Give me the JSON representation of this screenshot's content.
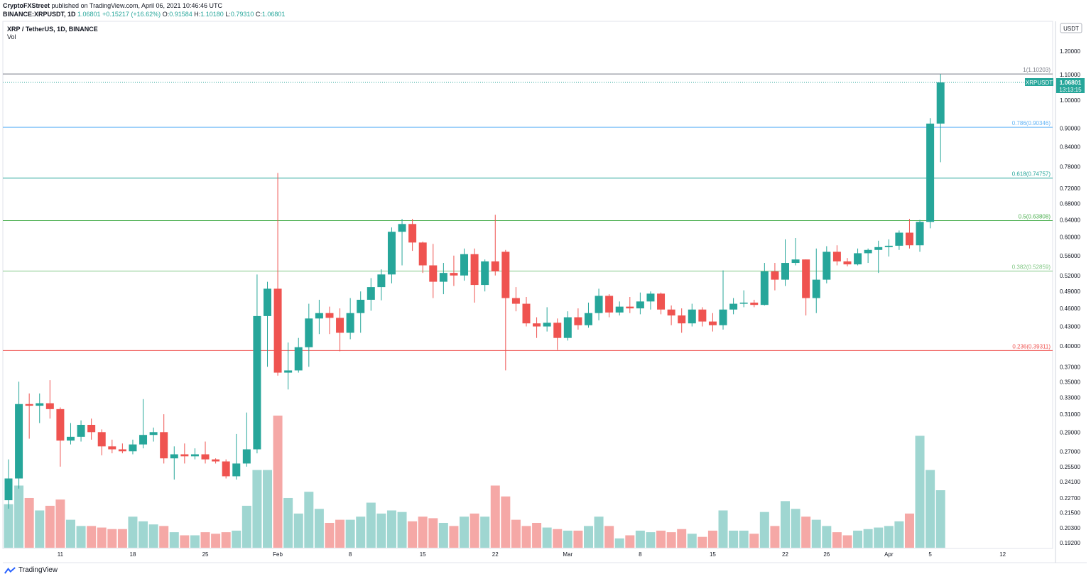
{
  "header": {
    "publisher": "CryptoFXStreet",
    "published_text": "published on TradingView.com, April 06, 2021 10:46:46 UTC",
    "ticker": "BINANCE:XRPUSDT, 1D",
    "last": "1.06801",
    "change": "+0.15217 (+16.62%)",
    "ohlc": {
      "o_label": "O:",
      "o": "0.91584",
      "h_label": "H:",
      "h": "1.10180",
      "l_label": "L:",
      "l": "0.79310",
      "c_label": "C:",
      "c": "1.06801"
    }
  },
  "legend": {
    "symbol": "XRP / TetherUS, 1D, BINANCE",
    "volume": "Vol"
  },
  "footer": {
    "brand": "TradingView"
  },
  "colors": {
    "up": "#26a69a",
    "down": "#ef5350",
    "vol_up": "#9fd6d1",
    "vol_down": "#f5a8a6",
    "fib_top": "#787b86",
    "fib_786": "#64b5f6",
    "fib_618": "#26a69a",
    "fib_05": "#4caf50",
    "fib_382": "#81c784",
    "fib_236": "#ef5350"
  },
  "chart_data": {
    "type": "candlestick",
    "y_scale": "log",
    "currency": "USDT",
    "ylim": [
      0.19,
      1.32
    ],
    "y_ticks": [
      "1.20000",
      "1.10000",
      "1.00000",
      "0.90000",
      "0.84000",
      "0.78000",
      "0.72000",
      "0.68000",
      "0.64000",
      "0.60000",
      "0.56000",
      "0.52000",
      "0.49000",
      "0.46000",
      "0.43000",
      "0.40000",
      "0.37000",
      "0.35000",
      "0.33000",
      "0.31000",
      "0.29000",
      "0.27000",
      "0.25500",
      "0.24100",
      "0.22700",
      "0.21500",
      "0.20300",
      "0.19200"
    ],
    "x_ticks": [
      {
        "label": "11",
        "i": 5
      },
      {
        "label": "18",
        "i": 12
      },
      {
        "label": "25",
        "i": 19
      },
      {
        "label": "Feb",
        "i": 26
      },
      {
        "label": "8",
        "i": 33
      },
      {
        "label": "15",
        "i": 40
      },
      {
        "label": "22",
        "i": 47
      },
      {
        "label": "Mar",
        "i": 54
      },
      {
        "label": "8",
        "i": 61
      },
      {
        "label": "15",
        "i": 68
      },
      {
        "label": "22",
        "i": 75
      },
      {
        "label": "26",
        "i": 79
      },
      {
        "label": "Apr",
        "i": 85
      },
      {
        "label": "5",
        "i": 89
      },
      {
        "label": "12",
        "i": 96
      }
    ],
    "price_label": {
      "symbol": "XRPUSDT",
      "price": "1.06801",
      "countdown": "13:13:15"
    },
    "fib_levels": [
      {
        "label": "1(1.10203)",
        "value": 1.10203,
        "color_key": "fib_top"
      },
      {
        "label": "0.786(0.90346)",
        "value": 0.90346,
        "color_key": "fib_786"
      },
      {
        "label": "0.618(0.74757)",
        "value": 0.74757,
        "color_key": "fib_618"
      },
      {
        "label": "0.5(0.63808)",
        "value": 0.63808,
        "color_key": "fib_05"
      },
      {
        "label": "0.382(0.52859)",
        "value": 0.52859,
        "color_key": "fib_382"
      },
      {
        "label": "0.236(0.39311)",
        "value": 0.39311,
        "color_key": "fib_236"
      }
    ],
    "candles": [
      {
        "o": 0.225,
        "h": 0.262,
        "l": 0.218,
        "c": 0.244,
        "v": 28
      },
      {
        "o": 0.244,
        "h": 0.35,
        "l": 0.235,
        "c": 0.322,
        "v": 40
      },
      {
        "o": 0.322,
        "h": 0.335,
        "l": 0.283,
        "c": 0.32,
        "v": 32
      },
      {
        "o": 0.32,
        "h": 0.335,
        "l": 0.3,
        "c": 0.323,
        "v": 24
      },
      {
        "o": 0.323,
        "h": 0.352,
        "l": 0.305,
        "c": 0.316,
        "v": 27
      },
      {
        "o": 0.316,
        "h": 0.318,
        "l": 0.255,
        "c": 0.281,
        "v": 31
      },
      {
        "o": 0.281,
        "h": 0.3,
        "l": 0.277,
        "c": 0.285,
        "v": 18
      },
      {
        "o": 0.285,
        "h": 0.303,
        "l": 0.28,
        "c": 0.298,
        "v": 14
      },
      {
        "o": 0.298,
        "h": 0.305,
        "l": 0.282,
        "c": 0.29,
        "v": 14
      },
      {
        "o": 0.29,
        "h": 0.293,
        "l": 0.266,
        "c": 0.275,
        "v": 13
      },
      {
        "o": 0.275,
        "h": 0.282,
        "l": 0.268,
        "c": 0.272,
        "v": 12
      },
      {
        "o": 0.272,
        "h": 0.278,
        "l": 0.268,
        "c": 0.27,
        "v": 12
      },
      {
        "o": 0.27,
        "h": 0.282,
        "l": 0.267,
        "c": 0.277,
        "v": 20
      },
      {
        "o": 0.277,
        "h": 0.328,
        "l": 0.273,
        "c": 0.287,
        "v": 17
      },
      {
        "o": 0.287,
        "h": 0.295,
        "l": 0.28,
        "c": 0.29,
        "v": 15
      },
      {
        "o": 0.29,
        "h": 0.31,
        "l": 0.258,
        "c": 0.263,
        "v": 14
      },
      {
        "o": 0.263,
        "h": 0.275,
        "l": 0.243,
        "c": 0.267,
        "v": 10
      },
      {
        "o": 0.267,
        "h": 0.278,
        "l": 0.258,
        "c": 0.265,
        "v": 8
      },
      {
        "o": 0.265,
        "h": 0.273,
        "l": 0.262,
        "c": 0.267,
        "v": 8
      },
      {
        "o": 0.267,
        "h": 0.28,
        "l": 0.258,
        "c": 0.262,
        "v": 10
      },
      {
        "o": 0.262,
        "h": 0.263,
        "l": 0.258,
        "c": 0.26,
        "v": 9
      },
      {
        "o": 0.26,
        "h": 0.262,
        "l": 0.244,
        "c": 0.246,
        "v": 10
      },
      {
        "o": 0.246,
        "h": 0.288,
        "l": 0.243,
        "c": 0.258,
        "v": 11
      },
      {
        "o": 0.258,
        "h": 0.312,
        "l": 0.255,
        "c": 0.272,
        "v": 27
      },
      {
        "o": 0.272,
        "h": 0.522,
        "l": 0.268,
        "c": 0.447,
        "v": 50
      },
      {
        "o": 0.447,
        "h": 0.508,
        "l": 0.37,
        "c": 0.495,
        "v": 50
      },
      {
        "o": 0.495,
        "h": 0.762,
        "l": 0.358,
        "c": 0.362,
        "v": 85
      },
      {
        "o": 0.362,
        "h": 0.405,
        "l": 0.34,
        "c": 0.365,
        "v": 32
      },
      {
        "o": 0.365,
        "h": 0.412,
        "l": 0.362,
        "c": 0.398,
        "v": 22
      },
      {
        "o": 0.398,
        "h": 0.468,
        "l": 0.37,
        "c": 0.443,
        "v": 36
      },
      {
        "o": 0.443,
        "h": 0.475,
        "l": 0.418,
        "c": 0.452,
        "v": 25
      },
      {
        "o": 0.452,
        "h": 0.463,
        "l": 0.418,
        "c": 0.444,
        "v": 16
      },
      {
        "o": 0.444,
        "h": 0.46,
        "l": 0.392,
        "c": 0.42,
        "v": 18
      },
      {
        "o": 0.42,
        "h": 0.478,
        "l": 0.41,
        "c": 0.452,
        "v": 18
      },
      {
        "o": 0.452,
        "h": 0.49,
        "l": 0.42,
        "c": 0.475,
        "v": 20
      },
      {
        "o": 0.475,
        "h": 0.515,
        "l": 0.456,
        "c": 0.498,
        "v": 29
      },
      {
        "o": 0.498,
        "h": 0.532,
        "l": 0.474,
        "c": 0.522,
        "v": 22
      },
      {
        "o": 0.522,
        "h": 0.622,
        "l": 0.505,
        "c": 0.612,
        "v": 24
      },
      {
        "o": 0.612,
        "h": 0.642,
        "l": 0.54,
        "c": 0.63,
        "v": 23
      },
      {
        "o": 0.63,
        "h": 0.642,
        "l": 0.57,
        "c": 0.588,
        "v": 17
      },
      {
        "o": 0.588,
        "h": 0.59,
        "l": 0.525,
        "c": 0.54,
        "v": 20
      },
      {
        "o": 0.54,
        "h": 0.585,
        "l": 0.478,
        "c": 0.508,
        "v": 19
      },
      {
        "o": 0.508,
        "h": 0.545,
        "l": 0.485,
        "c": 0.525,
        "v": 16
      },
      {
        "o": 0.525,
        "h": 0.56,
        "l": 0.5,
        "c": 0.52,
        "v": 14
      },
      {
        "o": 0.52,
        "h": 0.575,
        "l": 0.51,
        "c": 0.563,
        "v": 20
      },
      {
        "o": 0.563,
        "h": 0.575,
        "l": 0.47,
        "c": 0.502,
        "v": 22
      },
      {
        "o": 0.502,
        "h": 0.552,
        "l": 0.49,
        "c": 0.548,
        "v": 20
      },
      {
        "o": 0.548,
        "h": 0.652,
        "l": 0.52,
        "c": 0.528,
        "v": 40
      },
      {
        "o": 0.568,
        "h": 0.572,
        "l": 0.365,
        "c": 0.478,
        "v": 33
      },
      {
        "o": 0.478,
        "h": 0.498,
        "l": 0.455,
        "c": 0.468,
        "v": 18
      },
      {
        "o": 0.468,
        "h": 0.48,
        "l": 0.43,
        "c": 0.435,
        "v": 14
      },
      {
        "o": 0.435,
        "h": 0.445,
        "l": 0.412,
        "c": 0.43,
        "v": 16
      },
      {
        "o": 0.43,
        "h": 0.462,
        "l": 0.422,
        "c": 0.436,
        "v": 13
      },
      {
        "o": 0.436,
        "h": 0.443,
        "l": 0.394,
        "c": 0.412,
        "v": 12
      },
      {
        "o": 0.412,
        "h": 0.455,
        "l": 0.408,
        "c": 0.445,
        "v": 11
      },
      {
        "o": 0.445,
        "h": 0.46,
        "l": 0.425,
        "c": 0.432,
        "v": 11
      },
      {
        "o": 0.432,
        "h": 0.47,
        "l": 0.428,
        "c": 0.452,
        "v": 14
      },
      {
        "o": 0.452,
        "h": 0.495,
        "l": 0.44,
        "c": 0.482,
        "v": 20
      },
      {
        "o": 0.482,
        "h": 0.485,
        "l": 0.445,
        "c": 0.453,
        "v": 14
      },
      {
        "o": 0.453,
        "h": 0.472,
        "l": 0.448,
        "c": 0.463,
        "v": 6
      },
      {
        "o": 0.463,
        "h": 0.48,
        "l": 0.452,
        "c": 0.46,
        "v": 8
      },
      {
        "o": 0.46,
        "h": 0.488,
        "l": 0.45,
        "c": 0.472,
        "v": 11
      },
      {
        "o": 0.472,
        "h": 0.49,
        "l": 0.458,
        "c": 0.486,
        "v": 10
      },
      {
        "o": 0.486,
        "h": 0.488,
        "l": 0.45,
        "c": 0.458,
        "v": 11
      },
      {
        "o": 0.458,
        "h": 0.465,
        "l": 0.432,
        "c": 0.448,
        "v": 10
      },
      {
        "o": 0.448,
        "h": 0.46,
        "l": 0.42,
        "c": 0.435,
        "v": 12
      },
      {
        "o": 0.435,
        "h": 0.468,
        "l": 0.43,
        "c": 0.458,
        "v": 9
      },
      {
        "o": 0.458,
        "h": 0.462,
        "l": 0.43,
        "c": 0.438,
        "v": 7
      },
      {
        "o": 0.438,
        "h": 0.452,
        "l": 0.422,
        "c": 0.432,
        "v": 11
      },
      {
        "o": 0.432,
        "h": 0.53,
        "l": 0.425,
        "c": 0.458,
        "v": 24
      },
      {
        "o": 0.458,
        "h": 0.478,
        "l": 0.45,
        "c": 0.468,
        "v": 11
      },
      {
        "o": 0.468,
        "h": 0.492,
        "l": 0.462,
        "c": 0.47,
        "v": 11
      },
      {
        "o": 0.47,
        "h": 0.475,
        "l": 0.462,
        "c": 0.466,
        "v": 9
      },
      {
        "o": 0.466,
        "h": 0.545,
        "l": 0.465,
        "c": 0.528,
        "v": 23
      },
      {
        "o": 0.528,
        "h": 0.545,
        "l": 0.492,
        "c": 0.512,
        "v": 14
      },
      {
        "o": 0.512,
        "h": 0.595,
        "l": 0.5,
        "c": 0.545,
        "v": 30
      },
      {
        "o": 0.545,
        "h": 0.598,
        "l": 0.54,
        "c": 0.552,
        "v": 25
      },
      {
        "o": 0.552,
        "h": 0.552,
        "l": 0.448,
        "c": 0.478,
        "v": 20
      },
      {
        "o": 0.478,
        "h": 0.575,
        "l": 0.452,
        "c": 0.512,
        "v": 18
      },
      {
        "o": 0.512,
        "h": 0.58,
        "l": 0.505,
        "c": 0.568,
        "v": 14
      },
      {
        "o": 0.568,
        "h": 0.582,
        "l": 0.54,
        "c": 0.548,
        "v": 10
      },
      {
        "o": 0.548,
        "h": 0.555,
        "l": 0.538,
        "c": 0.542,
        "v": 8
      },
      {
        "o": 0.542,
        "h": 0.575,
        "l": 0.54,
        "c": 0.565,
        "v": 11
      },
      {
        "o": 0.565,
        "h": 0.575,
        "l": 0.545,
        "c": 0.572,
        "v": 12
      },
      {
        "o": 0.572,
        "h": 0.592,
        "l": 0.525,
        "c": 0.578,
        "v": 13
      },
      {
        "o": 0.578,
        "h": 0.595,
        "l": 0.558,
        "c": 0.581,
        "v": 14
      },
      {
        "o": 0.581,
        "h": 0.615,
        "l": 0.572,
        "c": 0.61,
        "v": 17
      },
      {
        "o": 0.61,
        "h": 0.642,
        "l": 0.575,
        "c": 0.582,
        "v": 22
      },
      {
        "o": 0.582,
        "h": 0.64,
        "l": 0.568,
        "c": 0.635,
        "v": 72
      },
      {
        "o": 0.635,
        "h": 0.935,
        "l": 0.62,
        "c": 0.916,
        "v": 50
      },
      {
        "o": 0.916,
        "h": 1.1018,
        "l": 0.7931,
        "c": 1.06801,
        "v": 37
      }
    ]
  }
}
